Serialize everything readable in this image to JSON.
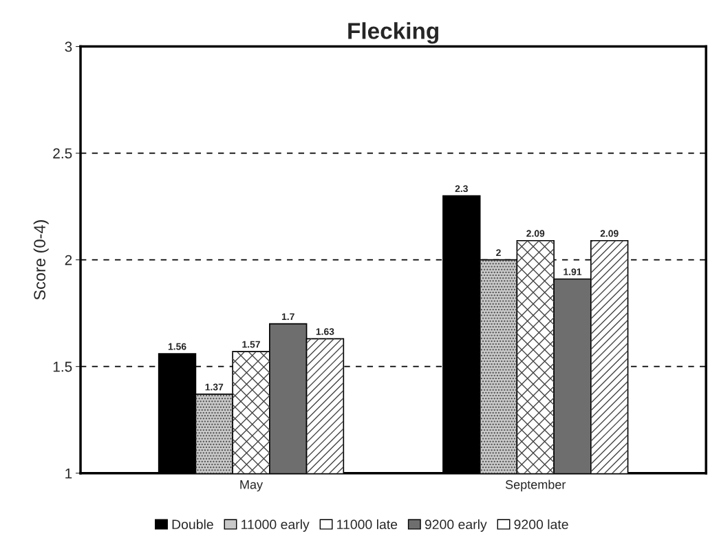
{
  "chart_data": {
    "type": "bar",
    "title": "Flecking",
    "ylabel": "Score (0-4)",
    "categories": [
      "May",
      "September"
    ],
    "series": [
      {
        "name": "Double",
        "color": "#000000",
        "values": [
          1.56,
          2.3
        ]
      },
      {
        "name": "11000 early",
        "color": "#c8c8c8",
        "values": [
          1.37,
          2
        ]
      },
      {
        "name": "11000 late",
        "color": "#ffffff",
        "values": [
          1.57,
          2.09
        ]
      },
      {
        "name": "9200 early",
        "color": "#6e6e6e",
        "values": [
          1.7,
          1.91
        ]
      },
      {
        "name": "9200 late",
        "color": "#ffffff",
        "values": [
          1.63,
          2.09
        ]
      }
    ],
    "ylim": [
      1,
      3
    ],
    "yticks": [
      1,
      1.5,
      2,
      2.5,
      3
    ],
    "grid": "y",
    "legend": "bottom",
    "data_labels": true
  }
}
